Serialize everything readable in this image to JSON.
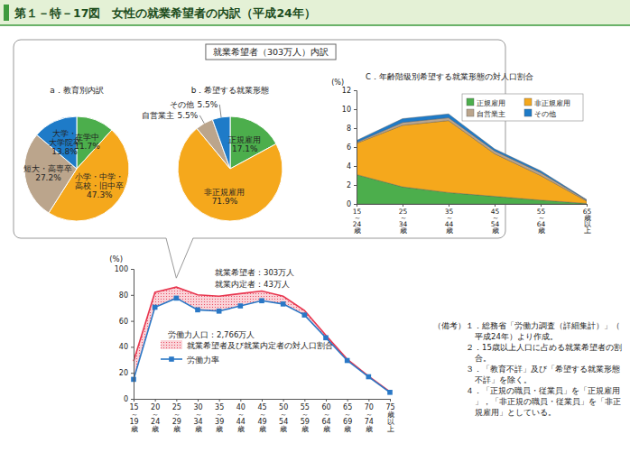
{
  "title": "第１－特－17図　女性の就業希望者の内訳（平成24年）",
  "panel_title": "就業希望者（303万人）内訳",
  "chart_data": [
    {
      "type": "pie",
      "title": "a．教育別内訳",
      "categories": [
        "在学中",
        "小学・中学・高校・旧中卒",
        "短大・高専卒",
        "大学・大学院卒"
      ],
      "values": [
        11.7,
        47.3,
        27.2,
        13.8
      ],
      "value_labels": [
        "11.7%",
        "47.3%",
        "27.2%",
        "13.8%"
      ],
      "colors": [
        "#4cae4c",
        "#f5a81c",
        "#bba58c",
        "#1e7bc8"
      ],
      "data_labels": true
    },
    {
      "type": "pie",
      "title": "b．希望する就業形態",
      "categories": [
        "正規雇用",
        "非正規雇用",
        "自営業主",
        "その他"
      ],
      "values": [
        17.1,
        71.9,
        5.5,
        5.5
      ],
      "value_labels": [
        "17.1%",
        "71.9%",
        "5.5%",
        "5.5%"
      ],
      "colors": [
        "#4cae4c",
        "#f5a81c",
        "#bba58c",
        "#1e7bc8"
      ],
      "data_labels": true
    },
    {
      "type": "area",
      "title": "C．年齢階級別希望する就業形態の対人口割合",
      "y_label": "(%)",
      "categories": [
        "15～24歳",
        "25～34歳",
        "35～44歳",
        "45～54歳",
        "55～64歳",
        "65歳以上"
      ],
      "series": [
        {
          "name": "正規雇用",
          "color": "#4cae4c",
          "values": [
            3.1,
            1.8,
            1.2,
            0.8,
            0.4,
            0.05
          ]
        },
        {
          "name": "非正規雇用",
          "color": "#f5a81c",
          "values": [
            3.3,
            6.5,
            7.6,
            4.5,
            2.6,
            0.25
          ]
        },
        {
          "name": "自営業主",
          "color": "#bba58c",
          "values": [
            0.1,
            0.3,
            0.3,
            0.3,
            0.3,
            0.1
          ]
        },
        {
          "name": "その他",
          "color": "#1e7bc8",
          "values": [
            0.2,
            0.4,
            0.4,
            0.2,
            0.2,
            0.05
          ]
        }
      ],
      "stacked": true,
      "ylim": [
        0,
        12
      ],
      "yticks": [
        0,
        2,
        4,
        6,
        8,
        10,
        12
      ],
      "grid": false,
      "legend": "upper right"
    },
    {
      "type": "line",
      "y_label": "(%)",
      "categories": [
        "15～19歳",
        "20～24歳",
        "25～29歳",
        "30～34歳",
        "35～39歳",
        "40～44歳",
        "45～49歳",
        "50～54歳",
        "55～59歳",
        "60～64歳",
        "65～69歳",
        "70～74歳",
        "75歳以上"
      ],
      "series": [
        {
          "name": "労働力率",
          "type": "line",
          "color": "#2a78c6",
          "marker": "square",
          "values": [
            15,
            70.5,
            77.5,
            68.5,
            67.5,
            71.5,
            75.5,
            73,
            64.5,
            47,
            29.5,
            17,
            5
          ]
        },
        {
          "name": "就業希望者及び就業内定者の対人口割合",
          "type": "area",
          "color": "#e8364f",
          "values": [
            14,
            11.5,
            8.5,
            11.5,
            11.5,
            9.5,
            7.5,
            6,
            3.5,
            2,
            1,
            0.5,
            0.5
          ]
        }
      ],
      "stacked": true,
      "ylim": [
        0,
        100
      ],
      "yticks": [
        0,
        20,
        40,
        60,
        80,
        100
      ],
      "grid": false,
      "legend": "lower left",
      "annotations": [
        "就業希望者：303万人",
        "就業内定者：43万人",
        "労働力人口：2,766万人"
      ]
    }
  ],
  "notes": {
    "label": "（備考）",
    "items": [
      "１．総務省「労働力調査（詳細集計）」（平成24年）より作成。",
      "２．15歳以上人口に占める就業希望者の割合。",
      "３．「教育不詳」及び「希望する就業形態不詳」を除く。",
      "４．「正規の職員・従業員」を「正規雇用」，「非正規の職員・従業員」を「非正規雇用」としている。"
    ]
  }
}
